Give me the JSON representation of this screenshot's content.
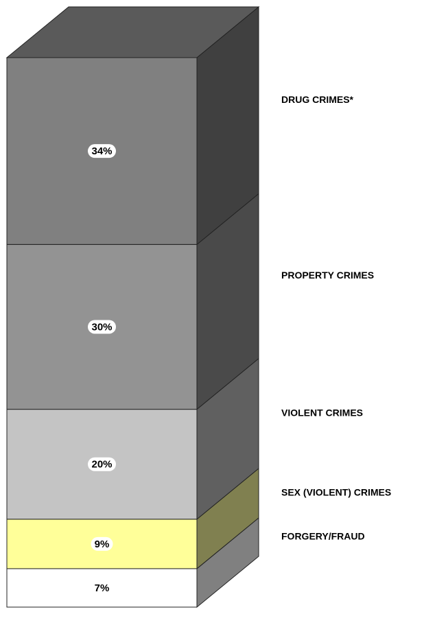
{
  "chart_data": {
    "type": "bar",
    "stacked": true,
    "ylim": [
      0,
      100
    ],
    "series": [
      {
        "name": "FORGERY/FRAUD",
        "color": "#ffffff",
        "side_color": "#808080",
        "values": [
          7
        ],
        "value_labels": [
          "7%"
        ]
      },
      {
        "name": "SEX (VIOLENT) CRIMES",
        "color": "#ffff99",
        "side_color": "#808050",
        "values": [
          9
        ],
        "value_labels": [
          "9%"
        ]
      },
      {
        "name": "VIOLENT CRIMES",
        "color": "#c4c4c4",
        "side_color": "#606060",
        "values": [
          20
        ],
        "value_labels": [
          "20%"
        ]
      },
      {
        "name": "PROPERTY CRIMES",
        "color": "#939393",
        "side_color": "#4a4a4a",
        "values": [
          30
        ],
        "value_labels": [
          "30%"
        ]
      },
      {
        "name": "DRUG CRIMES*",
        "color": "#808080",
        "side_color": "#404040",
        "values": [
          34
        ],
        "value_labels": [
          "34%"
        ]
      }
    ],
    "top_color": "#5a5a5a"
  }
}
